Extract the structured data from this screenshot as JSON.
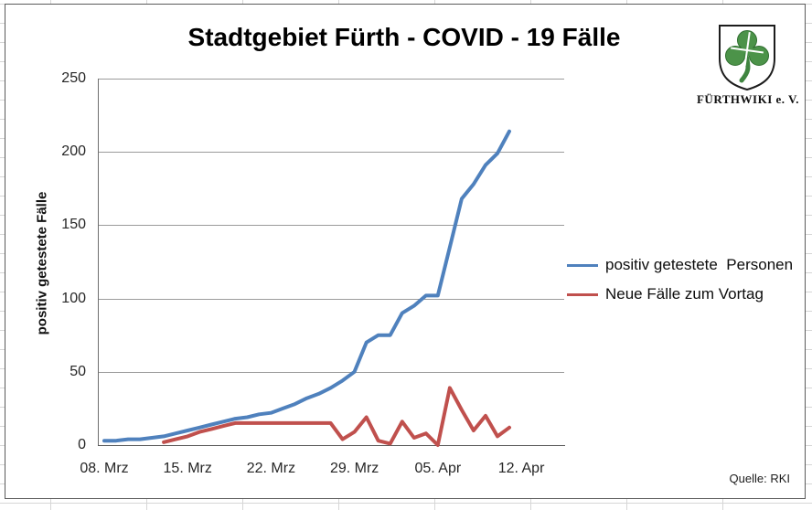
{
  "title": "Stadtgebiet Fürth - COVID - 19 Fälle",
  "branding": {
    "org_name": "FÜRTHWIKI e. V."
  },
  "source_note": "Quelle: RKI",
  "chart_data": {
    "type": "line",
    "title": "Stadtgebiet Fürth - COVID - 19 Fälle",
    "xlabel": "",
    "ylabel": "positiv getestete Fälle",
    "ylim": [
      0,
      250
    ],
    "y_ticks": [
      250,
      200,
      150,
      100,
      50,
      0
    ],
    "x_tick_labels": [
      "08. Mrz",
      "15. Mrz",
      "22. Mrz",
      "29. Mrz",
      "05. Apr",
      "12. Apr"
    ],
    "x_tick_day_index": [
      0,
      7,
      14,
      21,
      28,
      35
    ],
    "grid": "horizontal-only",
    "legend_position": "right",
    "categories": [
      "08. Mrz",
      "09. Mrz",
      "10. Mrz",
      "11. Mrz",
      "12. Mrz",
      "13. Mrz",
      "14. Mrz",
      "15. Mrz",
      "16. Mrz",
      "17. Mrz",
      "18. Mrz",
      "19. Mrz",
      "20. Mrz",
      "21. Mrz",
      "22. Mrz",
      "23. Mrz",
      "24. Mrz",
      "25. Mrz",
      "26. Mrz",
      "27. Mrz",
      "28. Mrz",
      "29. Mrz",
      "30. Mrz",
      "31. Mrz",
      "01. Apr",
      "02. Apr",
      "03. Apr",
      "04. Apr",
      "05. Apr",
      "06. Apr",
      "07. Apr",
      "08. Apr",
      "09. Apr",
      "10. Apr",
      "11. Apr"
    ],
    "series": [
      {
        "name": "positiv getestete Personen",
        "legend_label": "positiv getestete  Personen",
        "color": "#4F81BD",
        "values": [
          3,
          3,
          4,
          4,
          5,
          6,
          8,
          10,
          12,
          14,
          16,
          18,
          19,
          21,
          22,
          25,
          28,
          32,
          35,
          39,
          44,
          50,
          70,
          75,
          75,
          90,
          95,
          102,
          102,
          135,
          168,
          178,
          191,
          199,
          214
        ]
      },
      {
        "name": "Neue Fälle zum Vortag",
        "legend_label": "Neue Fälle zum Vortag",
        "color": "#C0504D",
        "values": [
          null,
          null,
          null,
          null,
          null,
          2,
          4,
          6,
          9,
          11,
          13,
          15,
          15,
          15,
          15,
          15,
          15,
          15,
          15,
          15,
          4,
          9,
          19,
          3,
          1,
          16,
          5,
          8,
          0,
          39,
          24,
          10,
          20,
          6,
          12
        ]
      }
    ]
  }
}
